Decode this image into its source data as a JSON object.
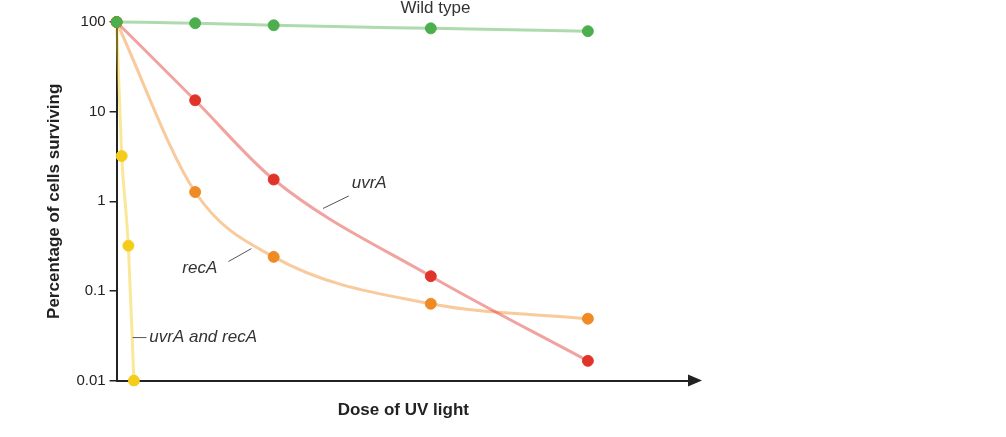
{
  "chart_data": {
    "type": "line",
    "x_label": "Dose of UV light",
    "y_label": "Percentage of cells surviving",
    "xlim": [
      0,
      7.3
    ],
    "ylim": [
      0.01,
      100
    ],
    "yticks": [
      0.01,
      0.1,
      1,
      10,
      100
    ],
    "log": "y",
    "grid": false,
    "tick_labels": "y",
    "series": [
      {
        "name": "Wild type",
        "color": "#4cae4c",
        "marker": "circle",
        "x": [
          0,
          1,
          2,
          4,
          6
        ],
        "values": [
          100,
          97,
          92,
          85,
          79
        ]
      },
      {
        "name": "uvrA",
        "color": "#e0342a",
        "marker": "circle",
        "x": [
          0,
          1,
          2,
          4,
          6
        ],
        "values": [
          100,
          13.4,
          1.75,
          0.146,
          0.0166
        ]
      },
      {
        "name": "recA",
        "color": "#f08a24",
        "marker": "circle",
        "x": [
          0,
          1,
          2,
          4,
          6
        ],
        "values": [
          100,
          1.27,
          0.24,
          0.072,
          0.049
        ]
      },
      {
        "name": "uvrA and recA",
        "color": "#f5cc1a",
        "marker": "circle",
        "x": [
          0,
          0.065,
          0.15,
          0.22
        ],
        "values": [
          100,
          3.2,
          0.32,
          0.01
        ]
      }
    ]
  }
}
